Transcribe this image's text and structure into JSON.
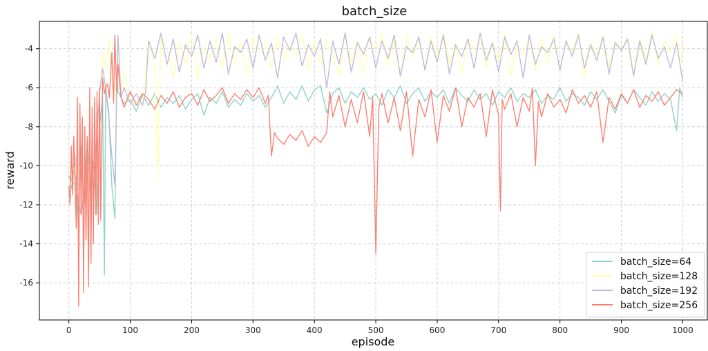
{
  "chart_data": {
    "type": "line",
    "title": "batch_size",
    "xlabel": "episode",
    "ylabel": "reward",
    "xlim": [
      -48,
      1040
    ],
    "ylim": [
      -17.9,
      -2.6
    ],
    "xticks": [
      0,
      100,
      200,
      300,
      400,
      500,
      600,
      700,
      800,
      900,
      1000
    ],
    "yticks": [
      -16,
      -14,
      -12,
      -10,
      -8,
      -6,
      -4
    ],
    "grid": true,
    "legend_position": "lower-right",
    "series": [
      {
        "name": "batch_size=64",
        "color": "#8dd3c7",
        "x": [
          0,
          5,
          10,
          15,
          20,
          25,
          30,
          35,
          40,
          45,
          50,
          55,
          58,
          60,
          65,
          70,
          75,
          78,
          80,
          85,
          90,
          100,
          110,
          120,
          130,
          140,
          150,
          160,
          170,
          180,
          190,
          200,
          210,
          220,
          230,
          240,
          250,
          260,
          270,
          280,
          290,
          300,
          310,
          320,
          330,
          340,
          350,
          360,
          370,
          380,
          390,
          400,
          410,
          420,
          430,
          440,
          450,
          460,
          470,
          480,
          490,
          500,
          510,
          520,
          530,
          540,
          550,
          560,
          570,
          580,
          590,
          600,
          610,
          620,
          630,
          640,
          650,
          660,
          670,
          680,
          690,
          700,
          710,
          720,
          730,
          740,
          750,
          760,
          770,
          780,
          790,
          800,
          810,
          820,
          830,
          840,
          850,
          860,
          870,
          880,
          890,
          900,
          910,
          920,
          930,
          940,
          950,
          960,
          970,
          980,
          990,
          995,
          1000
        ],
        "values": [
          -10.5,
          -11.2,
          -9.5,
          -13.0,
          -9.0,
          -12.0,
          -8.5,
          -11.5,
          -9.8,
          -12.5,
          -8.0,
          -6.5,
          -15.6,
          -6.0,
          -7.2,
          -11.0,
          -12.7,
          -5.5,
          -6.2,
          -6.5,
          -6.8,
          -6.6,
          -7.2,
          -6.4,
          -6.9,
          -6.3,
          -7.0,
          -6.5,
          -6.8,
          -6.4,
          -7.1,
          -6.6,
          -6.3,
          -7.4,
          -6.5,
          -6.8,
          -6.2,
          -7.0,
          -6.6,
          -6.9,
          -6.3,
          -6.7,
          -6.4,
          -7.0,
          -6.5,
          -5.9,
          -6.8,
          -6.2,
          -6.6,
          -5.9,
          -6.7,
          -6.1,
          -5.9,
          -7.3,
          -6.3,
          -6.0,
          -6.8,
          -6.2,
          -6.5,
          -6.0,
          -6.6,
          -6.3,
          -6.9,
          -6.1,
          -6.5,
          -5.9,
          -6.8,
          -6.3,
          -6.0,
          -6.7,
          -6.2,
          -6.5,
          -6.1,
          -6.8,
          -6.0,
          -6.4,
          -6.7,
          -6.1,
          -6.6,
          -6.3,
          -6.9,
          -6.2,
          -6.5,
          -6.0,
          -6.7,
          -6.3,
          -6.5,
          -6.1,
          -6.8,
          -6.4,
          -6.6,
          -6.0,
          -6.7,
          -6.3,
          -6.5,
          -6.9,
          -6.2,
          -6.6,
          -6.1,
          -6.7,
          -7.3,
          -6.4,
          -6.8,
          -6.1,
          -6.5,
          -6.9,
          -6.2,
          -6.7,
          -6.3,
          -6.6,
          -8.2,
          -6.0,
          -6.5
        ]
      },
      {
        "name": "batch_size=128",
        "color": "#ffffb3",
        "x": [
          0,
          10,
          20,
          30,
          40,
          50,
          55,
          60,
          65,
          70,
          75,
          80,
          85,
          90,
          100,
          110,
          120,
          130,
          140,
          145,
          150,
          160,
          170,
          180,
          190,
          200,
          210,
          220,
          230,
          240,
          250,
          260,
          270,
          280,
          290,
          300,
          310,
          320,
          330,
          340,
          350,
          360,
          370,
          380,
          390,
          400,
          410,
          420,
          430,
          440,
          450,
          460,
          470,
          480,
          490,
          500,
          510,
          520,
          530,
          540,
          550,
          560,
          570,
          580,
          590,
          600,
          610,
          620,
          630,
          640,
          650,
          660,
          670,
          680,
          690,
          700,
          710,
          720,
          730,
          740,
          750,
          760,
          770,
          780,
          790,
          800,
          810,
          820,
          830,
          840,
          850,
          860,
          870,
          880,
          890,
          900,
          910,
          920,
          930,
          940,
          950,
          960,
          970,
          980,
          990,
          1000
        ],
        "values": [
          -10.8,
          -10.0,
          -12.0,
          -10.5,
          -11.0,
          -6.5,
          -4.2,
          -5.0,
          -3.5,
          -5.5,
          -6.5,
          -4.5,
          -6.0,
          -5.2,
          -6.8,
          -6.3,
          -7.0,
          -3.5,
          -5.0,
          -10.7,
          -3.4,
          -4.0,
          -5.5,
          -3.6,
          -4.8,
          -3.3,
          -5.6,
          -3.9,
          -4.5,
          -3.5,
          -5.0,
          -3.2,
          -4.8,
          -3.7,
          -5.3,
          -3.4,
          -4.2,
          -3.6,
          -5.0,
          -3.3,
          -4.6,
          -3.8,
          -4.4,
          -3.2,
          -5.1,
          -3.6,
          -4.8,
          -3.5,
          -4.2,
          -5.4,
          -3.3,
          -4.7,
          -3.6,
          -5.2,
          -3.4,
          -4.0,
          -3.2,
          -4.9,
          -3.5,
          -5.6,
          -3.3,
          -4.4,
          -3.6,
          -5.0,
          -3.4,
          -4.5,
          -3.2,
          -4.8,
          -3.7,
          -5.3,
          -3.5,
          -4.1,
          -3.3,
          -5.0,
          -3.6,
          -4.6,
          -3.2,
          -5.4,
          -3.8,
          -4.3,
          -3.4,
          -5.1,
          -3.5,
          -4.7,
          -3.3,
          -5.0,
          -3.6,
          -4.2,
          -3.2,
          -5.5,
          -3.7,
          -4.4,
          -3.3,
          -5.0,
          -3.6,
          -4.1,
          -3.4,
          -5.2,
          -3.5,
          -4.6,
          -3.1,
          -4.8,
          -3.6,
          -4.2,
          -3.3,
          -4.9
        ]
      },
      {
        "name": "batch_size=192",
        "color": "#bebada",
        "x": [
          0,
          10,
          20,
          30,
          40,
          50,
          55,
          60,
          65,
          70,
          75,
          80,
          85,
          90,
          100,
          110,
          120,
          125,
          130,
          140,
          150,
          160,
          170,
          180,
          190,
          200,
          210,
          220,
          230,
          240,
          250,
          260,
          270,
          280,
          290,
          300,
          310,
          320,
          330,
          340,
          350,
          360,
          370,
          380,
          390,
          400,
          410,
          420,
          430,
          440,
          450,
          460,
          470,
          480,
          490,
          500,
          510,
          520,
          530,
          540,
          550,
          560,
          570,
          580,
          590,
          600,
          610,
          620,
          630,
          640,
          650,
          660,
          670,
          680,
          690,
          700,
          710,
          720,
          730,
          740,
          750,
          760,
          770,
          780,
          790,
          800,
          810,
          820,
          830,
          840,
          850,
          860,
          870,
          880,
          890,
          900,
          910,
          920,
          930,
          940,
          950,
          960,
          970,
          980,
          990,
          1000
        ],
        "values": [
          -10.5,
          -11.0,
          -12.5,
          -10.0,
          -11.2,
          -6.3,
          -5.0,
          -6.0,
          -7.5,
          -9.5,
          -11.0,
          -3.3,
          -6.5,
          -6.0,
          -6.8,
          -6.3,
          -6.9,
          -6.2,
          -3.6,
          -4.5,
          -3.2,
          -4.8,
          -3.5,
          -5.2,
          -3.8,
          -4.4,
          -3.3,
          -5.0,
          -3.6,
          -4.7,
          -3.2,
          -5.3,
          -3.9,
          -4.2,
          -3.5,
          -5.0,
          -3.3,
          -4.6,
          -3.7,
          -5.5,
          -3.4,
          -4.1,
          -3.2,
          -4.9,
          -3.8,
          -4.4,
          -3.5,
          -6.0,
          -3.6,
          -4.8,
          -3.2,
          -5.2,
          -3.7,
          -4.3,
          -3.4,
          -5.0,
          -3.6,
          -4.5,
          -3.3,
          -5.4,
          -3.9,
          -4.2,
          -3.4,
          -5.1,
          -3.6,
          -4.7,
          -3.3,
          -5.3,
          -3.8,
          -4.4,
          -3.5,
          -5.0,
          -3.2,
          -4.6,
          -3.7,
          -5.2,
          -3.4,
          -4.3,
          -3.6,
          -5.5,
          -3.3,
          -4.8,
          -3.9,
          -4.2,
          -3.5,
          -5.1,
          -3.6,
          -4.4,
          -3.3,
          -5.0,
          -3.8,
          -4.6,
          -3.4,
          -5.3,
          -3.7,
          -4.1,
          -3.5,
          -5.4,
          -3.6,
          -4.8,
          -3.3,
          -4.5,
          -3.9,
          -5.0,
          -3.7,
          -5.7
        ]
      },
      {
        "name": "batch_size=256",
        "color": "#fb8072",
        "x": [
          0,
          2,
          4,
          6,
          8,
          10,
          12,
          14,
          16,
          18,
          20,
          22,
          24,
          26,
          28,
          30,
          32,
          34,
          36,
          38,
          40,
          42,
          44,
          46,
          48,
          50,
          52,
          55,
          58,
          60,
          63,
          66,
          70,
          73,
          75,
          78,
          80,
          85,
          90,
          100,
          110,
          120,
          130,
          140,
          150,
          160,
          170,
          180,
          190,
          200,
          210,
          220,
          230,
          240,
          250,
          260,
          270,
          280,
          290,
          300,
          310,
          320,
          325,
          330,
          335,
          340,
          350,
          360,
          370,
          380,
          390,
          400,
          410,
          420,
          425,
          430,
          440,
          450,
          460,
          470,
          480,
          490,
          495,
          500,
          505,
          510,
          520,
          530,
          540,
          550,
          560,
          570,
          580,
          590,
          600,
          610,
          620,
          630,
          640,
          650,
          660,
          670,
          680,
          690,
          700,
          703,
          706,
          710,
          720,
          730,
          740,
          750,
          755,
          760,
          765,
          770,
          780,
          790,
          800,
          810,
          820,
          830,
          840,
          850,
          860,
          870,
          880,
          890,
          900,
          910,
          920,
          930,
          940,
          950,
          960,
          970,
          980,
          990,
          1000
        ],
        "values": [
          -11.0,
          -12.0,
          -9.0,
          -11.5,
          -8.5,
          -10.5,
          -13.2,
          -6.5,
          -17.2,
          -6.8,
          -12.5,
          -7.5,
          -16.5,
          -8.0,
          -13.8,
          -8.5,
          -16.2,
          -6.0,
          -15.0,
          -7.0,
          -14.0,
          -6.5,
          -12.5,
          -6.2,
          -13.0,
          -6.0,
          -12.8,
          -5.5,
          -6.3,
          -6.0,
          -5.8,
          -6.5,
          -4.2,
          -6.8,
          -3.3,
          -6.2,
          -4.8,
          -6.5,
          -7.0,
          -6.2,
          -6.9,
          -6.3,
          -6.6,
          -7.1,
          -6.4,
          -6.8,
          -6.2,
          -7.0,
          -6.5,
          -6.3,
          -6.9,
          -6.1,
          -6.7,
          -6.4,
          -6.0,
          -6.8,
          -6.3,
          -6.6,
          -6.1,
          -6.5,
          -6.0,
          -6.8,
          -6.4,
          -9.5,
          -8.3,
          -8.6,
          -8.9,
          -8.4,
          -8.7,
          -8.2,
          -9.0,
          -8.5,
          -8.8,
          -8.3,
          -6.2,
          -7.5,
          -6.4,
          -8.0,
          -6.6,
          -7.8,
          -6.2,
          -8.5,
          -6.5,
          -14.5,
          -7.0,
          -6.3,
          -7.8,
          -6.5,
          -8.2,
          -6.2,
          -9.5,
          -6.6,
          -7.5,
          -6.1,
          -8.8,
          -6.4,
          -7.2,
          -6.0,
          -8.0,
          -6.5,
          -7.0,
          -6.3,
          -8.5,
          -6.1,
          -7.4,
          -12.3,
          -6.6,
          -7.1,
          -6.3,
          -8.0,
          -6.5,
          -7.2,
          -6.0,
          -10.0,
          -6.7,
          -7.5,
          -6.3,
          -7.0,
          -6.6,
          -7.3,
          -6.1,
          -6.8,
          -6.4,
          -7.0,
          -6.2,
          -8.8,
          -6.5,
          -7.1,
          -6.3,
          -6.8,
          -6.1,
          -7.0,
          -6.4,
          -6.7,
          -6.2,
          -6.9,
          -6.5,
          -6.1,
          -6.3
        ]
      }
    ]
  }
}
